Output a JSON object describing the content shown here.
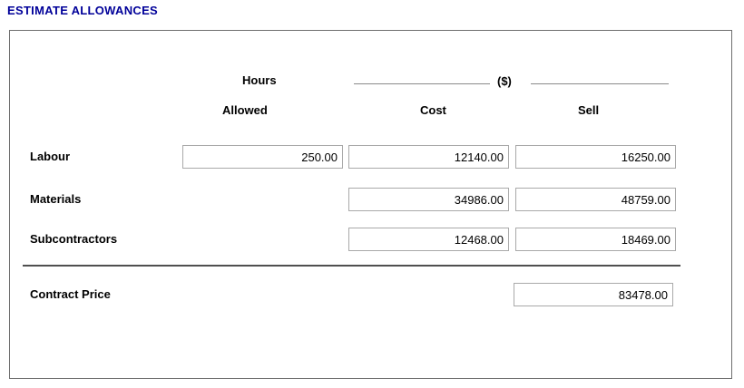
{
  "page": {
    "title": "ESTIMATE ALLOWANCES"
  },
  "headers": {
    "hours_group": "Hours",
    "currency_group": "($)",
    "allowed": "Allowed",
    "cost": "Cost",
    "sell": "Sell"
  },
  "rows": [
    {
      "label": "Labour",
      "hours_allowed": "250.00",
      "cost": "12140.00",
      "sell": "16250.00"
    },
    {
      "label": "Materials",
      "cost": "34986.00",
      "sell": "48759.00"
    },
    {
      "label": "Subcontractors",
      "cost": "12468.00",
      "sell": "18469.00"
    }
  ],
  "summary": {
    "label": "Contract Price",
    "sell": "83478.00"
  },
  "colors": {
    "title_text": "#000099",
    "panel_border": "#6e6e6e",
    "input_border": "#a9a9a9",
    "header_line": "#8a8a8a",
    "separator_line": "#4f4f4f",
    "label_text": "#000000"
  }
}
